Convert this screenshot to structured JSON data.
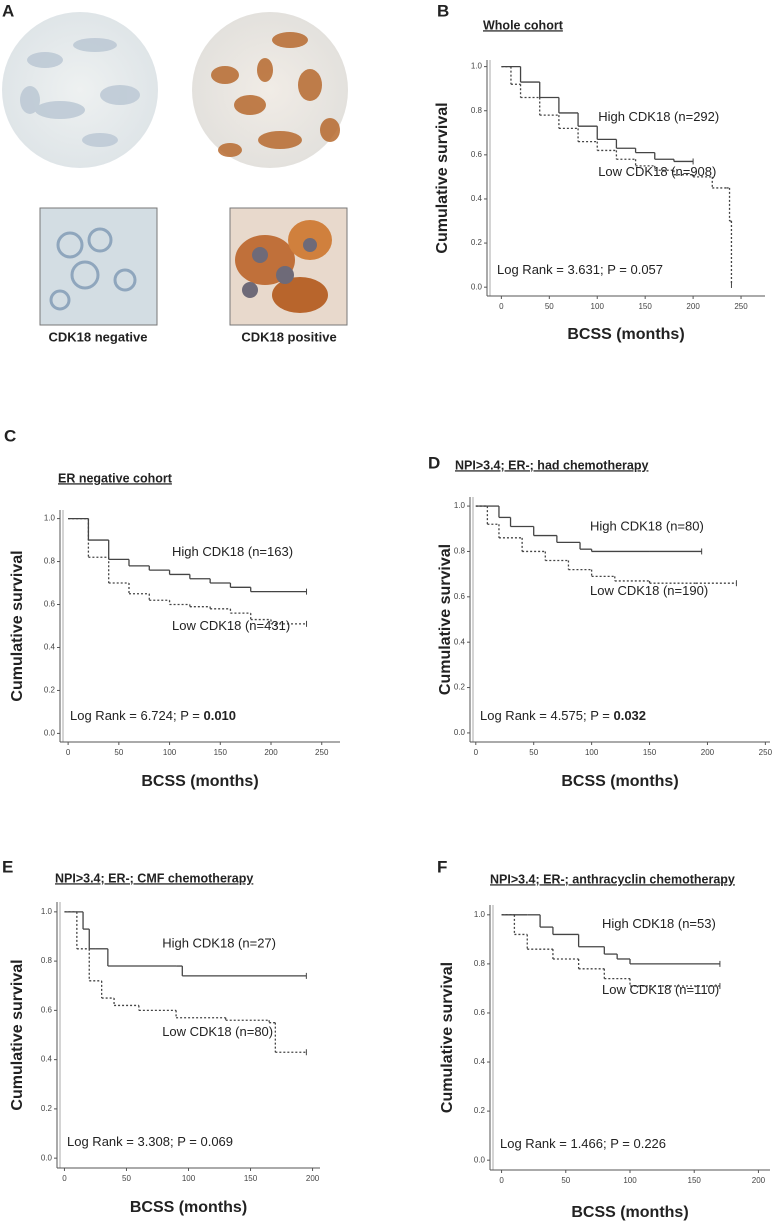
{
  "panel_a": {
    "label": "A",
    "captions": [
      "CDK18 negative",
      "CDK18 positive"
    ]
  },
  "chart_data": [
    {
      "type": "step",
      "panel": "B",
      "title": "Whole cohort",
      "xlabel": "BCSS (months)",
      "ylabel": "Cumulative survival",
      "annotation": "Log Rank = 3.631; P = 0.057",
      "annotation_emphasis": null,
      "xlim": [
        -15,
        275
      ],
      "ylim": [
        -0.04,
        1.03
      ],
      "xticks": [
        0,
        50,
        100,
        150,
        200,
        250
      ],
      "yticks": [
        {
          "value": 0,
          "label": "0.0"
        },
        {
          "value": 0.2,
          "label": "0.2"
        },
        {
          "value": 0.4,
          "label": "0.4"
        },
        {
          "value": 0.6,
          "label": "0.6"
        },
        {
          "value": 0.8,
          "label": "0.8"
        },
        {
          "value": 1,
          "label": "1.0"
        }
      ],
      "series": [
        {
          "name": "High CDK18 (n=292)",
          "color": "#444444",
          "style": "solid",
          "x": [
            0,
            20,
            40,
            60,
            80,
            100,
            120,
            140,
            160,
            180,
            200
          ],
          "values": [
            1,
            0.93,
            0.86,
            0.79,
            0.73,
            0.67,
            0.63,
            0.61,
            0.58,
            0.57,
            0.57
          ]
        },
        {
          "name": "Low CDK18 (n=908)",
          "color": "#444444",
          "style": "dotted",
          "x": [
            0,
            10,
            20,
            40,
            60,
            80,
            100,
            120,
            140,
            160,
            180,
            200,
            220,
            235,
            238,
            240
          ],
          "values": [
            1,
            0.92,
            0.86,
            0.78,
            0.72,
            0.66,
            0.62,
            0.58,
            0.55,
            0.53,
            0.51,
            0.5,
            0.45,
            0.45,
            0.3,
            0.01
          ]
        }
      ]
    },
    {
      "type": "step",
      "panel": "C",
      "title": "ER negative cohort",
      "xlabel": "BCSS (months)",
      "ylabel": "Cumulative survival",
      "annotation": "Log Rank = 6.724; P = ",
      "annotation_emphasis": "0.010",
      "xlim": [
        -8,
        268
      ],
      "ylim": [
        -0.04,
        1.04
      ],
      "xticks": [
        0,
        50,
        100,
        150,
        200,
        250
      ],
      "yticks": [
        {
          "value": 0,
          "label": "0.0"
        },
        {
          "value": 0.2,
          "label": "0.2"
        },
        {
          "value": 0.4,
          "label": "0.4"
        },
        {
          "value": 0.6,
          "label": "0.6"
        },
        {
          "value": 0.8,
          "label": "0.8"
        },
        {
          "value": 1,
          "label": "1.0"
        }
      ],
      "series": [
        {
          "name": "High CDK18 (n=163)",
          "color": "#444444",
          "style": "solid",
          "x": [
            0,
            20,
            40,
            60,
            80,
            100,
            120,
            140,
            160,
            180,
            200,
            235
          ],
          "values": [
            1,
            0.9,
            0.81,
            0.78,
            0.76,
            0.74,
            0.72,
            0.7,
            0.68,
            0.66,
            0.66,
            0.66
          ]
        },
        {
          "name": "Low CDK18 (n=431)",
          "color": "#444444",
          "style": "dotted",
          "x": [
            0,
            20,
            40,
            60,
            80,
            100,
            120,
            140,
            160,
            180,
            200,
            235
          ],
          "values": [
            1,
            0.82,
            0.7,
            0.65,
            0.62,
            0.6,
            0.59,
            0.58,
            0.56,
            0.53,
            0.51,
            0.51
          ]
        }
      ]
    },
    {
      "type": "step",
      "panel": "D",
      "title": "NPI>3.4; ER-; had chemotherapy",
      "xlabel": "BCSS (months)",
      "ylabel": "Cumulative survival",
      "annotation": "Log Rank = 4.575; P = ",
      "annotation_emphasis": "0.032",
      "xlim": [
        -5,
        254
      ],
      "ylim": [
        -0.04,
        1.04
      ],
      "xticks": [
        0,
        50,
        100,
        150,
        200,
        250
      ],
      "yticks": [
        {
          "value": 0,
          "label": "0.0"
        },
        {
          "value": 0.2,
          "label": "0.2"
        },
        {
          "value": 0.4,
          "label": "0.4"
        },
        {
          "value": 0.6,
          "label": "0.6"
        },
        {
          "value": 0.8,
          "label": "0.8"
        },
        {
          "value": 1,
          "label": "1.0"
        }
      ],
      "series": [
        {
          "name": "High CDK18 (n=80)",
          "color": "#444444",
          "style": "solid",
          "x": [
            0,
            10,
            20,
            30,
            50,
            70,
            90,
            100,
            150,
            195
          ],
          "values": [
            1,
            1,
            0.95,
            0.91,
            0.87,
            0.84,
            0.81,
            0.8,
            0.8,
            0.8
          ]
        },
        {
          "name": "Low CDK18 (n=190)",
          "color": "#444444",
          "style": "dotted",
          "x": [
            0,
            10,
            20,
            40,
            60,
            80,
            100,
            120,
            150,
            190,
            225
          ],
          "values": [
            1,
            0.92,
            0.86,
            0.8,
            0.76,
            0.72,
            0.69,
            0.67,
            0.66,
            0.66,
            0.66
          ]
        }
      ]
    },
    {
      "type": "step",
      "panel": "E",
      "title": "NPI>3.4; ER-; CMF chemotherapy",
      "xlabel": "BCSS (months)",
      "ylabel": "Cumulative survival",
      "annotation": "Log Rank = 3.308; P = 0.069",
      "annotation_emphasis": null,
      "xlim": [
        -6,
        206
      ],
      "ylim": [
        -0.04,
        1.04
      ],
      "xticks": [
        0,
        50,
        100,
        150,
        200
      ],
      "yticks": [
        {
          "value": 0,
          "label": "0.0"
        },
        {
          "value": 0.2,
          "label": "0.2"
        },
        {
          "value": 0.4,
          "label": "0.4"
        },
        {
          "value": 0.6,
          "label": "0.6"
        },
        {
          "value": 0.8,
          "label": "0.8"
        },
        {
          "value": 1,
          "label": "1.0"
        }
      ],
      "series": [
        {
          "name": "High CDK18 (n=27)",
          "color": "#444444",
          "style": "solid",
          "x": [
            0,
            15,
            20,
            25,
            35,
            90,
            95,
            195
          ],
          "values": [
            1,
            0.93,
            0.85,
            0.85,
            0.78,
            0.78,
            0.74,
            0.74
          ]
        },
        {
          "name": "Low CDK18 (n=80)",
          "color": "#444444",
          "style": "dotted",
          "x": [
            0,
            10,
            20,
            30,
            40,
            60,
            90,
            130,
            165,
            170,
            195
          ],
          "values": [
            1,
            0.85,
            0.72,
            0.65,
            0.62,
            0.6,
            0.57,
            0.56,
            0.55,
            0.43,
            0.43
          ]
        }
      ]
    },
    {
      "type": "step",
      "panel": "F",
      "title": "NPI>3.4; ER-; anthracyclin chemotherapy",
      "xlabel": "BCSS (months)",
      "ylabel": "Cumulative survival",
      "annotation": "Log Rank = 1.466; P = 0.226",
      "annotation_emphasis": null,
      "xlim": [
        -9,
        209
      ],
      "ylim": [
        -0.04,
        1.04
      ],
      "xticks": [
        0,
        50,
        100,
        150,
        200
      ],
      "yticks": [
        {
          "value": 0,
          "label": "0.0"
        },
        {
          "value": 0.2,
          "label": "0.2"
        },
        {
          "value": 0.4,
          "label": "0.4"
        },
        {
          "value": 0.6,
          "label": "0.6"
        },
        {
          "value": 0.8,
          "label": "0.8"
        },
        {
          "value": 1,
          "label": "1.0"
        }
      ],
      "series": [
        {
          "name": "High CDK18 (n=53)",
          "color": "#444444",
          "style": "solid",
          "x": [
            0,
            20,
            30,
            40,
            60,
            80,
            90,
            100,
            170
          ],
          "values": [
            1,
            1,
            0.95,
            0.92,
            0.87,
            0.84,
            0.82,
            0.8,
            0.8
          ]
        },
        {
          "name": "Low CDK18 (n=110)",
          "color": "#444444",
          "style": "dotted",
          "x": [
            0,
            10,
            20,
            40,
            60,
            80,
            100,
            170
          ],
          "values": [
            1,
            0.92,
            0.86,
            0.82,
            0.78,
            0.74,
            0.71,
            0.71
          ]
        }
      ]
    }
  ]
}
